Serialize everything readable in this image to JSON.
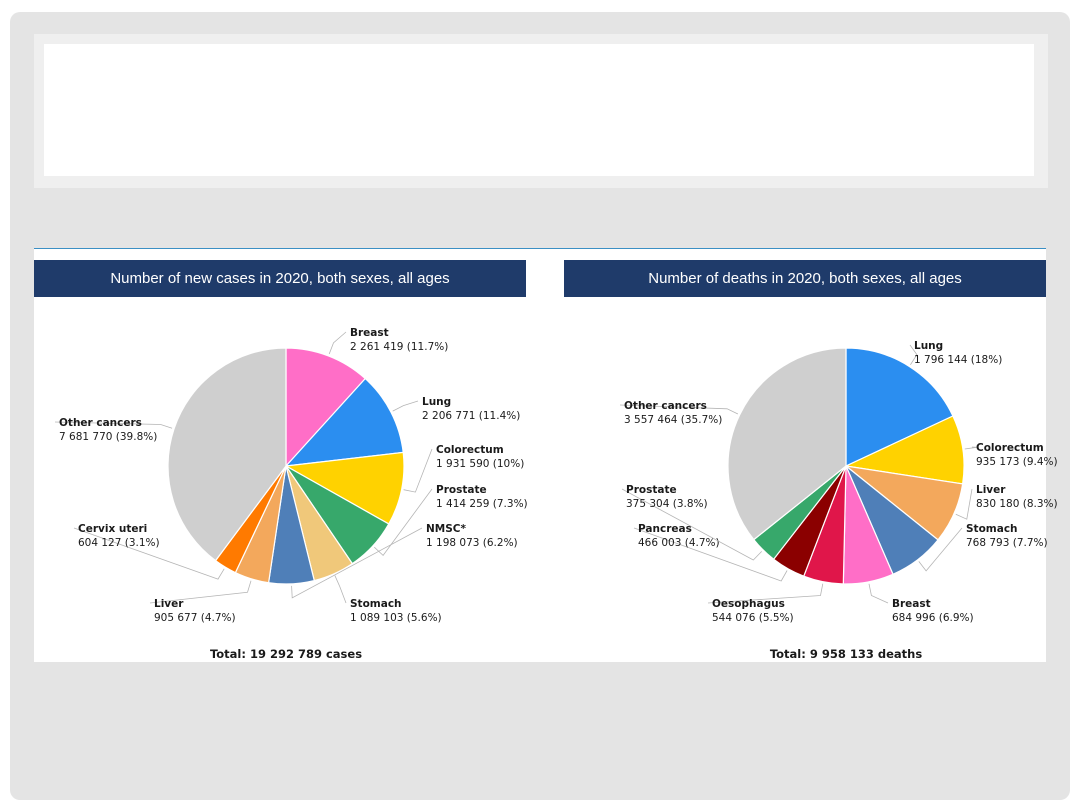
{
  "slide": {
    "title": ""
  },
  "chart_data": [
    {
      "type": "pie",
      "title": "Number of new cases in 2020, both sexes, all ages",
      "total": "Total: 19 292 789 cases",
      "slices": [
        {
          "name": "Breast",
          "value": 2261419,
          "label_value": "2 261 419 (11.7%)",
          "color": "#ff6ec7"
        },
        {
          "name": "Lung",
          "value": 2206771,
          "label_value": "2 206 771 (11.4%)",
          "color": "#2b8ef0"
        },
        {
          "name": "Colorectum",
          "value": 1931590,
          "label_value": "1 931 590 (10%)",
          "color": "#ffd200"
        },
        {
          "name": "Prostate",
          "value": 1414259,
          "label_value": "1 414 259 (7.3%)",
          "color": "#37a86b"
        },
        {
          "name": "Stomach",
          "value": 1089103,
          "label_value": "1 089 103 (5.6%)",
          "color": "#f0c87a"
        },
        {
          "name": "NMSC*",
          "value": 1198073,
          "label_value": "1 198 073 (6.2%)",
          "color": "#4f7fb8"
        },
        {
          "name": "Liver",
          "value": 905677,
          "label_value": "905 677 (4.7%)",
          "color": "#f3a85c"
        },
        {
          "name": "Cervix uteri",
          "value": 604127,
          "label_value": "604 127 (3.1%)",
          "color": "#ff7a00"
        },
        {
          "name": "Other cancers",
          "value": 7681770,
          "label_value": "7 681 770 (39.8%)",
          "color": "#cfcfcf"
        }
      ]
    },
    {
      "type": "pie",
      "title": "Number of deaths in 2020, both sexes, all ages",
      "total": "Total: 9 958 133 deaths",
      "slices": [
        {
          "name": "Lung",
          "value": 1796144,
          "label_value": "1 796 144 (18%)",
          "color": "#2b8ef0"
        },
        {
          "name": "Colorectum",
          "value": 935173,
          "label_value": "935 173 (9.4%)",
          "color": "#ffd200"
        },
        {
          "name": "Liver",
          "value": 830180,
          "label_value": "830 180 (8.3%)",
          "color": "#f3a85c"
        },
        {
          "name": "Stomach",
          "value": 768793,
          "label_value": "768 793 (7.7%)",
          "color": "#4f7fb8"
        },
        {
          "name": "Breast",
          "value": 684996,
          "label_value": "684 996 (6.9%)",
          "color": "#ff6ec7"
        },
        {
          "name": "Oesophagus",
          "value": 544076,
          "label_value": "544 076 (5.5%)",
          "color": "#e0164a"
        },
        {
          "name": "Pancreas",
          "value": 466003,
          "label_value": "466 003 (4.7%)",
          "color": "#8b0000"
        },
        {
          "name": "Prostate",
          "value": 375304,
          "label_value": "375 304 (3.8%)",
          "color": "#37a86b"
        },
        {
          "name": "Other cancers",
          "value": 3557464,
          "label_value": "3 557 464 (35.7%)",
          "color": "#cfcfcf"
        }
      ]
    }
  ]
}
